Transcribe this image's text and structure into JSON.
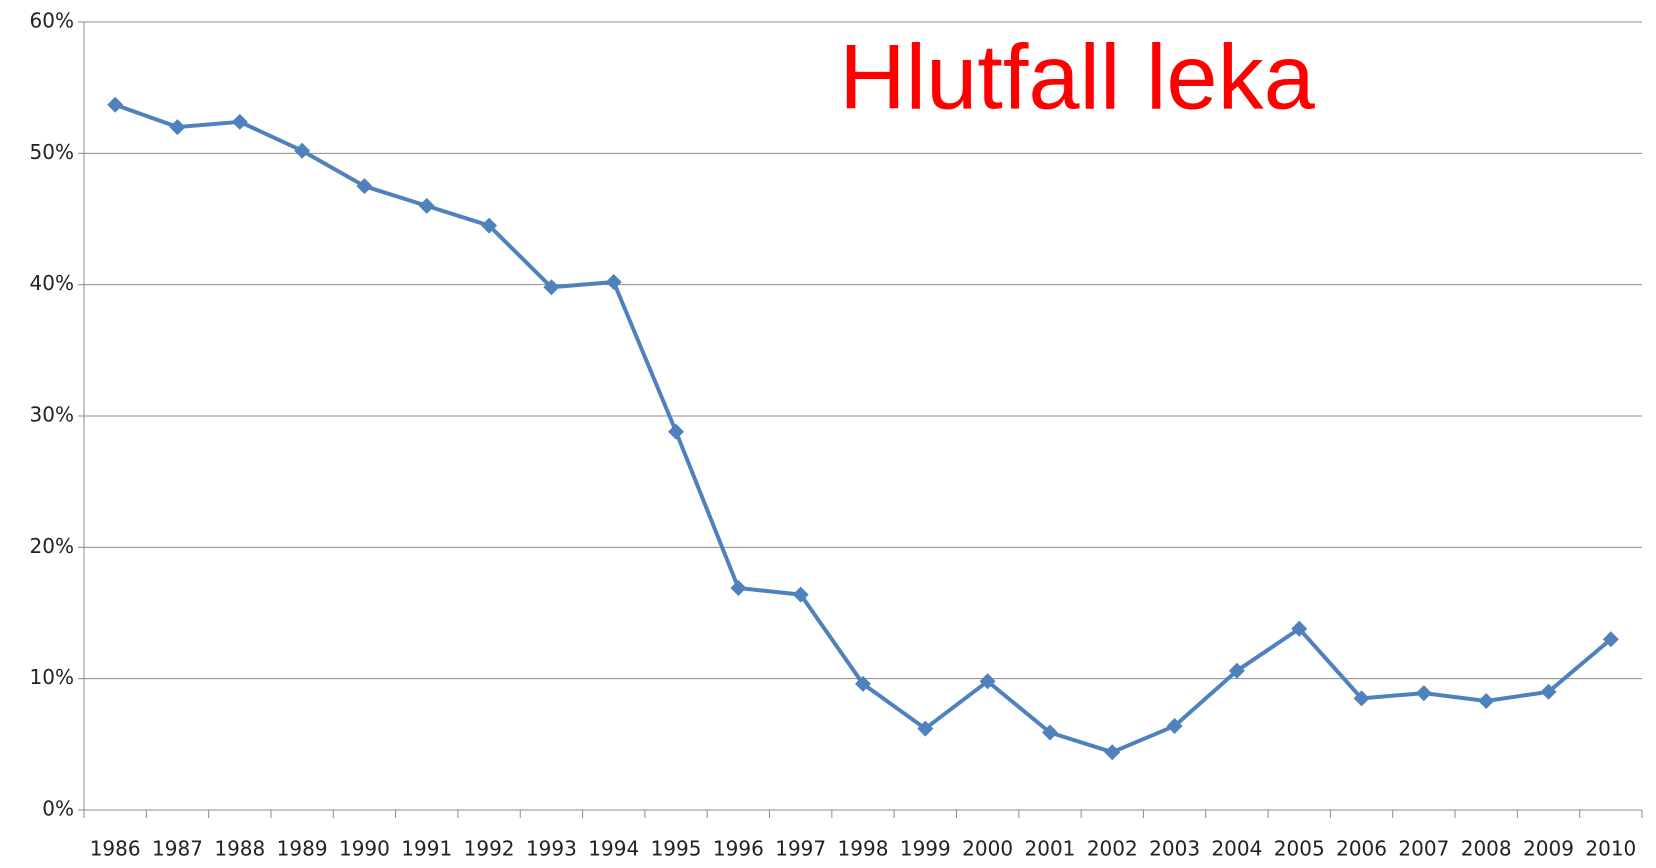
{
  "chart_data": {
    "type": "line",
    "title": "Hlutfall leka",
    "categories": [
      "1986",
      "1987",
      "1988",
      "1989",
      "1990",
      "1991",
      "1992",
      "1993",
      "1994",
      "1995",
      "1996",
      "1997",
      "1998",
      "1999",
      "2000",
      "2001",
      "2002",
      "2003",
      "2004",
      "2005",
      "2006",
      "2007",
      "2008",
      "2009",
      "2010"
    ],
    "series": [
      {
        "name": "Hlutfall leka",
        "color": "#4f81bd",
        "values": [
          53.7,
          52.0,
          52.4,
          50.2,
          47.5,
          46.0,
          44.5,
          39.8,
          40.2,
          28.8,
          16.9,
          16.4,
          9.6,
          6.2,
          9.8,
          5.9,
          4.4,
          6.4,
          10.6,
          13.8,
          8.5,
          8.9,
          8.3,
          9.0,
          13.0
        ]
      }
    ],
    "ylim": [
      0,
      60
    ],
    "yticks": [
      {
        "value": 0,
        "label": "0%"
      },
      {
        "value": 10,
        "label": "10%"
      },
      {
        "value": 20,
        "label": "20%"
      },
      {
        "value": 30,
        "label": "30%"
      },
      {
        "value": 40,
        "label": "40%"
      },
      {
        "value": 50,
        "label": "50%"
      },
      {
        "value": 60,
        "label": "60%"
      }
    ],
    "grid": true,
    "title_color": "#ff0000"
  }
}
